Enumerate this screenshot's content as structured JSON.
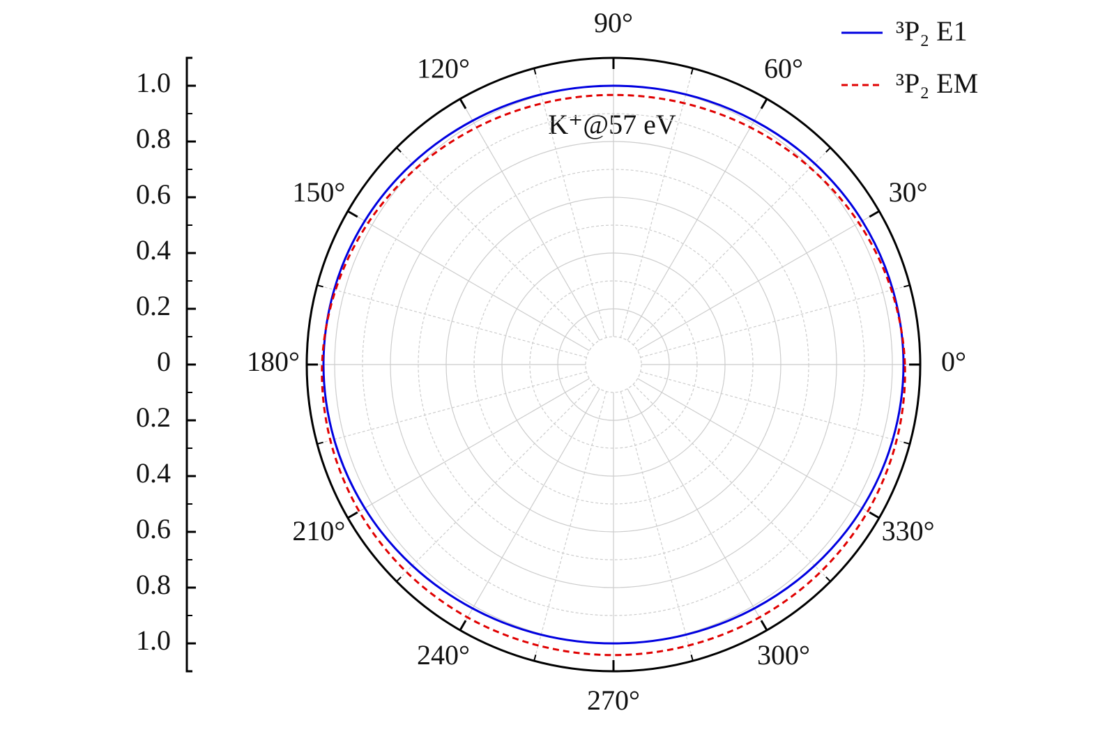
{
  "chart_data": {
    "type": "polar",
    "annotation": "K⁺@57 eV",
    "theta": [
      0,
      15,
      30,
      45,
      60,
      75,
      90,
      105,
      120,
      135,
      150,
      165,
      180,
      195,
      210,
      225,
      240,
      255,
      270,
      285,
      300,
      315,
      330,
      345,
      360
    ],
    "series": [
      {
        "name": "³P₂ E1",
        "color": "#0000e0",
        "dash": "solid",
        "values": [
          1.04,
          1.037,
          1.03,
          1.02,
          1.01,
          1.003,
          1.0,
          1.003,
          1.01,
          1.02,
          1.03,
          1.037,
          1.04,
          1.037,
          1.03,
          1.02,
          1.01,
          1.003,
          1.0,
          1.003,
          1.01,
          1.02,
          1.03,
          1.037,
          1.04
        ]
      },
      {
        "name": "³P₂ EM",
        "color": "#e00000",
        "dash": "dashed",
        "values": [
          1.045,
          1.032,
          1.016,
          0.998,
          0.982,
          0.971,
          0.967,
          0.971,
          0.982,
          0.998,
          1.016,
          1.032,
          1.045,
          1.051,
          1.053,
          1.051,
          1.047,
          1.043,
          1.042,
          1.043,
          1.047,
          1.051,
          1.053,
          1.051,
          1.045
        ]
      }
    ],
    "rlim": [
      0,
      1.1
    ],
    "rticks": [
      {
        "value": 1.0,
        "label": "1.0"
      },
      {
        "value": 0.8,
        "label": "0.8"
      },
      {
        "value": 0.6,
        "label": "0.6"
      },
      {
        "value": 0.4,
        "label": "0.4"
      },
      {
        "value": 0.2,
        "label": "0.2"
      },
      0,
      {
        "value": -0.2,
        "label": "0.2"
      },
      {
        "value": -0.4,
        "label": "0.4"
      },
      {
        "value": -0.6,
        "label": "0.6"
      },
      {
        "value": -0.8,
        "label": "0.8"
      },
      {
        "value": -1.0,
        "label": "1.0"
      }
    ],
    "rminor_ticks": [
      0.9,
      0.7,
      0.5,
      0.3,
      0.1,
      -0.1,
      -0.3,
      -0.5,
      -0.7,
      -0.9
    ],
    "thetaticks": [
      {
        "value": 0,
        "label": "0°"
      },
      {
        "value": 30,
        "label": "30°"
      },
      {
        "value": 60,
        "label": "60°"
      },
      {
        "value": 90,
        "label": "90°"
      },
      {
        "value": 120,
        "label": "120°"
      },
      {
        "value": 150,
        "label": "150°"
      },
      {
        "value": 180,
        "label": "180°"
      },
      {
        "value": 210,
        "label": "210°"
      },
      {
        "value": 240,
        "label": "240°"
      },
      {
        "value": 270,
        "label": "270°"
      },
      {
        "value": 300,
        "label": "300°"
      },
      {
        "value": 330,
        "label": "330°"
      }
    ],
    "theta_minor_ticks": [
      15,
      45,
      75,
      105,
      135,
      165,
      195,
      225,
      255,
      285,
      315,
      345
    ],
    "grid": true,
    "legend": "upper right"
  }
}
